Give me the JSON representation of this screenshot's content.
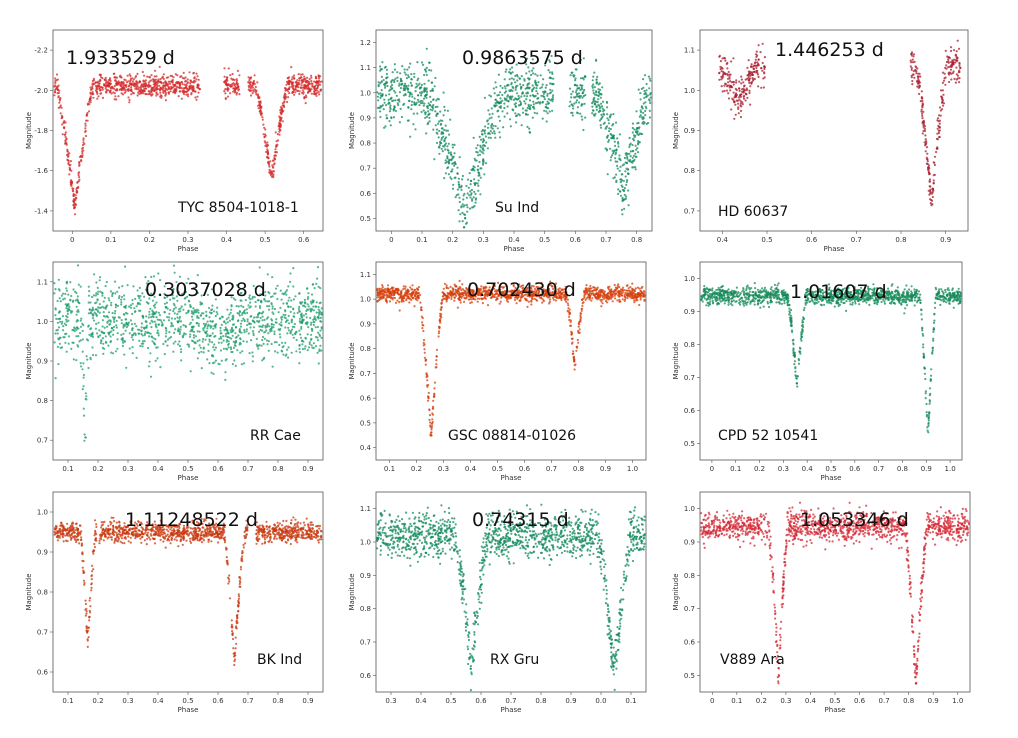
{
  "chart_data": [
    {
      "type": "scatter",
      "period": "1.933529 d",
      "star": "TYC 8504-1018-1",
      "xlabel": "Phase",
      "ylabel": "Magnitude",
      "color": "#d42a2a",
      "xlim": [
        0.0,
        0.68
      ],
      "ylim": [
        -1.35,
        -2.25
      ],
      "xticks": [
        "0",
        "0.1",
        "0.2",
        "0.3",
        "0.4",
        "0.5",
        "0.6"
      ],
      "yticks": [
        "-2.2",
        "-2.0",
        "-1.8",
        "-1.6",
        "-1.4"
      ],
      "baseline": -2.0,
      "scatter": 0.025,
      "gaps": [
        [
          0.37,
          0.43
        ],
        [
          0.47,
          0.49
        ]
      ],
      "minima": [
        {
          "x": 0.055,
          "depth": -1.45,
          "w": 0.045
        },
        {
          "x": 0.55,
          "depth": -1.58,
          "w": 0.04
        }
      ]
    },
    {
      "type": "scatter",
      "period": "0.9863575 d",
      "star": "Su Ind",
      "xlabel": "Phase",
      "ylabel": "Magnitude",
      "color": "#138a5e",
      "xlim": [
        0.0,
        0.87
      ],
      "ylim": [
        0.45,
        1.25
      ],
      "xticks": [
        "0",
        "0.1",
        "0.2",
        "0.3",
        "0.4",
        "0.5",
        "0.6",
        "0.7",
        "0.8"
      ],
      "yticks": [
        "1.2",
        "1.1",
        "1.0",
        "0.9",
        "0.8",
        "0.7",
        "0.6",
        "0.5"
      ],
      "baseline": 1.0,
      "scatter": 0.06,
      "gaps": [
        [
          0.56,
          0.61
        ],
        [
          0.66,
          0.68
        ]
      ],
      "minima": [
        {
          "x": 0.28,
          "depth": 0.53,
          "w": 0.12
        },
        {
          "x": 0.78,
          "depth": 0.6,
          "w": 0.08
        }
      ]
    },
    {
      "type": "scatter",
      "period": "1.446253 d",
      "star": "HD 60637",
      "xlabel": "Phase",
      "ylabel": "Magnitude",
      "color": "#a81e2e",
      "xlim": [
        0.3,
        1.0
      ],
      "ylim": [
        0.65,
        1.1
      ],
      "xticks": [
        "0.4",
        "0.5",
        "0.6",
        "0.7",
        "0.8",
        "0.9"
      ],
      "yticks": [
        "1.1",
        "1.0",
        "0.9",
        "0.8",
        "0.7"
      ],
      "baseline": 1.02,
      "scatter": 0.02,
      "gaps": [
        [
          0.47,
          0.85
        ],
        [
          0.98,
          1.0
        ],
        [
          0.3,
          0.35
        ]
      ],
      "minima": [
        {
          "x": 0.4,
          "depth": 0.94,
          "w": 0.05
        },
        {
          "x": 0.905,
          "depth": 0.72,
          "w": 0.04
        }
      ]
    },
    {
      "type": "scatter",
      "period": "0.3037028 d",
      "star": "RR Cae",
      "xlabel": "Phase",
      "ylabel": "Magnitude",
      "color": "#1f9e6e",
      "xlim": [
        0.05,
        0.98
      ],
      "ylim": [
        0.63,
        1.14
      ],
      "xticks": [
        "0.1",
        "0.2",
        "0.3",
        "0.4",
        "0.5",
        "0.6",
        "0.7",
        "0.8",
        "0.9"
      ],
      "yticks": [
        "1.1",
        "1.0",
        "0.9",
        "0.8",
        "0.7"
      ],
      "baseline": 0.99,
      "scatter": 0.05,
      "gaps": [],
      "minima": [
        {
          "x": 0.16,
          "depth": 0.68,
          "w": 0.012
        },
        {
          "x": 0.63,
          "depth": 0.95,
          "w": 0.1
        }
      ]
    },
    {
      "type": "scatter",
      "period": "0.702430 d",
      "star": "GSC 08814-01026",
      "xlabel": "Phase",
      "ylabel": "Magnitude",
      "color": "#d4400e",
      "xlim": [
        0.05,
        0.98
      ],
      "ylim": [
        0.38,
        1.12
      ],
      "xticks": [
        "0.1",
        "0.2",
        "0.3",
        "0.4",
        "0.5",
        "0.6",
        "0.7",
        "0.8",
        "0.9",
        "1.0"
      ],
      "yticks": [
        "1.1",
        "1.0",
        "0.9",
        "0.8",
        "0.7",
        "0.6",
        "0.5",
        "0.4"
      ],
      "baseline": 1.0,
      "scatter": 0.015,
      "gaps": [],
      "minima": [
        {
          "x": 0.24,
          "depth": 0.46,
          "w": 0.04
        },
        {
          "x": 0.735,
          "depth": 0.73,
          "w": 0.03
        }
      ]
    },
    {
      "type": "scatter",
      "period": "1.01607 d",
      "star": "CPD 52 10541",
      "xlabel": "Phase",
      "ylabel": "Magnitude",
      "color": "#168a5a",
      "xlim": [
        0.0,
        1.0
      ],
      "ylim": [
        0.42,
        1.12
      ],
      "xticks": [
        "0",
        "0.1",
        "0.2",
        "0.3",
        "0.4",
        "0.5",
        "0.6",
        "0.7",
        "0.8",
        "0.9",
        "1.0"
      ],
      "yticks": [
        "1.0",
        "0.9",
        "0.8",
        "0.7",
        "0.6",
        "0.5"
      ],
      "baseline": 1.0,
      "scatter": 0.015,
      "gaps": [],
      "minima": [
        {
          "x": 0.37,
          "depth": 0.68,
          "w": 0.035
        },
        {
          "x": 0.87,
          "depth": 0.49,
          "w": 0.03
        }
      ]
    },
    {
      "type": "scatter",
      "period": "1.11248522 d",
      "star": "BK Ind",
      "xlabel": "Phase",
      "ylabel": "Magnitude",
      "color": "#c83a10",
      "xlim": [
        0.05,
        0.98
      ],
      "ylim": [
        0.6,
        1.1
      ],
      "xticks": [
        "0.1",
        "0.2",
        "0.3",
        "0.4",
        "0.5",
        "0.6",
        "0.7",
        "0.8",
        "0.9"
      ],
      "yticks": [
        "1.0",
        "0.9",
        "0.8",
        "0.7",
        "0.6"
      ],
      "baseline": 1.0,
      "scatter": 0.012,
      "gaps": [
        [
          0.2,
          0.21
        ],
        [
          0.72,
          0.75
        ]
      ],
      "minima": [
        {
          "x": 0.17,
          "depth": 0.72,
          "w": 0.025
        },
        {
          "x": 0.675,
          "depth": 0.68,
          "w": 0.035
        }
      ]
    },
    {
      "type": "scatter",
      "period": "0.74315 d",
      "star": "RX Gru",
      "xlabel": "Phase",
      "ylabel": "Magnitude",
      "color": "#138a5e",
      "xlim": [
        0.25,
        1.1
      ],
      "ylim": [
        0.57,
        1.12
      ],
      "xticks": [
        "0.3",
        "0.4",
        "0.5",
        "0.6",
        "0.7",
        "0.8",
        "0.9",
        "0.0",
        "0.1"
      ],
      "yticks": [
        "1.1",
        "1.0",
        "0.9",
        "0.8",
        "0.7",
        "0.6"
      ],
      "baseline": 1.0,
      "scatter": 0.03,
      "gaps": [],
      "minima": [
        {
          "x": 0.55,
          "depth": 0.63,
          "w": 0.05
        },
        {
          "x": 1.0,
          "depth": 0.61,
          "w": 0.05
        }
      ]
    },
    {
      "type": "scatter",
      "period": "1.053346 d",
      "star": "V889 Ara",
      "xlabel": "Phase",
      "ylabel": "Magnitude",
      "color": "#d42a36",
      "xlim": [
        0.0,
        1.0
      ],
      "ylim": [
        0.42,
        1.12
      ],
      "xticks": [
        "0",
        "0.1",
        "0.2",
        "0.3",
        "0.4",
        "0.5",
        "0.6",
        "0.7",
        "0.8",
        "0.9",
        "1.0"
      ],
      "yticks": [
        "1.0",
        "0.9",
        "0.8",
        "0.7",
        "0.6",
        "0.5"
      ],
      "baseline": 1.0,
      "scatter": 0.025,
      "gaps": [],
      "minima": [
        {
          "x": 0.29,
          "depth": 0.48,
          "w": 0.035
        },
        {
          "x": 0.8,
          "depth": 0.45,
          "w": 0.04
        }
      ]
    }
  ]
}
